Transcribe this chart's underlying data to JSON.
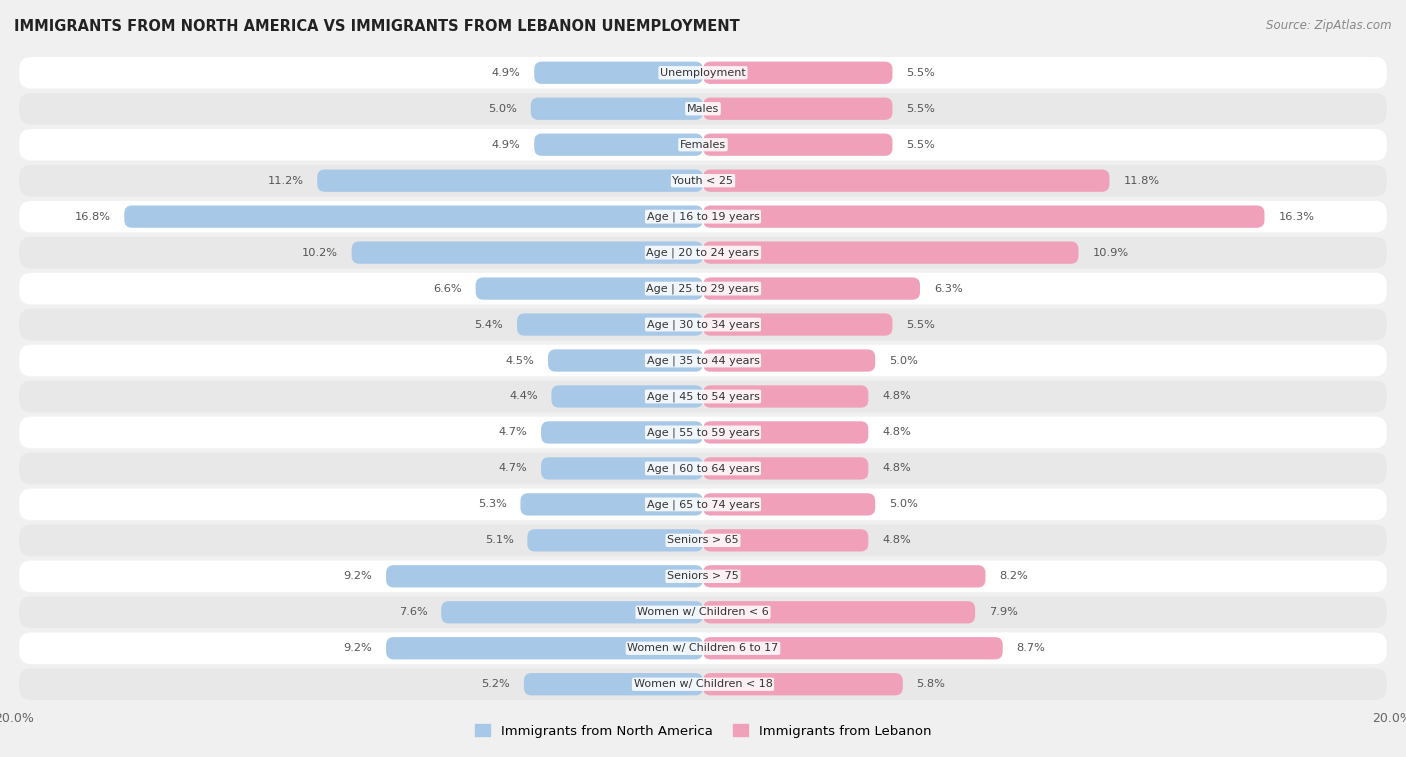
{
  "title": "IMMIGRANTS FROM NORTH AMERICA VS IMMIGRANTS FROM LEBANON UNEMPLOYMENT",
  "source": "Source: ZipAtlas.com",
  "categories": [
    "Unemployment",
    "Males",
    "Females",
    "Youth < 25",
    "Age | 16 to 19 years",
    "Age | 20 to 24 years",
    "Age | 25 to 29 years",
    "Age | 30 to 34 years",
    "Age | 35 to 44 years",
    "Age | 45 to 54 years",
    "Age | 55 to 59 years",
    "Age | 60 to 64 years",
    "Age | 65 to 74 years",
    "Seniors > 65",
    "Seniors > 75",
    "Women w/ Children < 6",
    "Women w/ Children 6 to 17",
    "Women w/ Children < 18"
  ],
  "north_america": [
    4.9,
    5.0,
    4.9,
    11.2,
    16.8,
    10.2,
    6.6,
    5.4,
    4.5,
    4.4,
    4.7,
    4.7,
    5.3,
    5.1,
    9.2,
    7.6,
    9.2,
    5.2
  ],
  "lebanon": [
    5.5,
    5.5,
    5.5,
    11.8,
    16.3,
    10.9,
    6.3,
    5.5,
    5.0,
    4.8,
    4.8,
    4.8,
    5.0,
    4.8,
    8.2,
    7.9,
    8.7,
    5.8
  ],
  "color_north_america": "#a8c8e8",
  "color_lebanon": "#f0a0b8",
  "color_na_highlight": "#5a9fd4",
  "color_lb_highlight": "#e06898",
  "xlim": 20.0,
  "row_colors": [
    "#ffffff",
    "#e8e8e8"
  ],
  "fig_bg": "#f0f0f0",
  "label_color": "#555555",
  "title_color": "#222222",
  "source_color": "#888888"
}
